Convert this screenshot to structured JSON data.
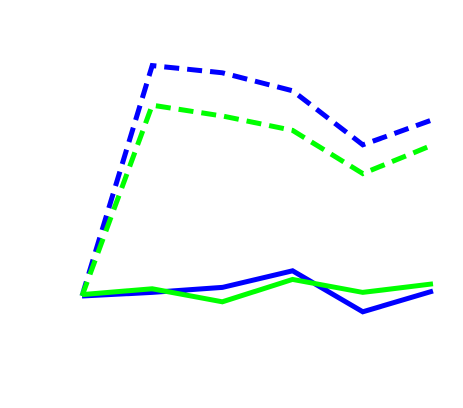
{
  "chart_data": {
    "type": "line",
    "x": [
      0,
      1,
      2,
      3,
      4,
      5
    ],
    "xlim": [
      0,
      5
    ],
    "ylim": [
      0,
      4
    ],
    "axes_visible": false,
    "grid": false,
    "legend": "none",
    "series": [
      {
        "values": [
          0.0,
          3.2,
          3.1,
          2.85,
          2.1,
          2.45
        ],
        "color": "#0000ff",
        "line_style": "dashed"
      },
      {
        "values": [
          0.0,
          2.65,
          2.5,
          2.3,
          1.7,
          2.1
        ],
        "color": "#00ff00",
        "line_style": "dashed"
      },
      {
        "values": [
          0.0,
          0.05,
          0.12,
          0.35,
          -0.22,
          0.07
        ],
        "color": "#0000ff",
        "line_style": "solid"
      },
      {
        "values": [
          0.02,
          0.1,
          -0.08,
          0.23,
          0.05,
          0.17
        ],
        "color": "#00ff00",
        "line_style": "solid"
      }
    ]
  }
}
